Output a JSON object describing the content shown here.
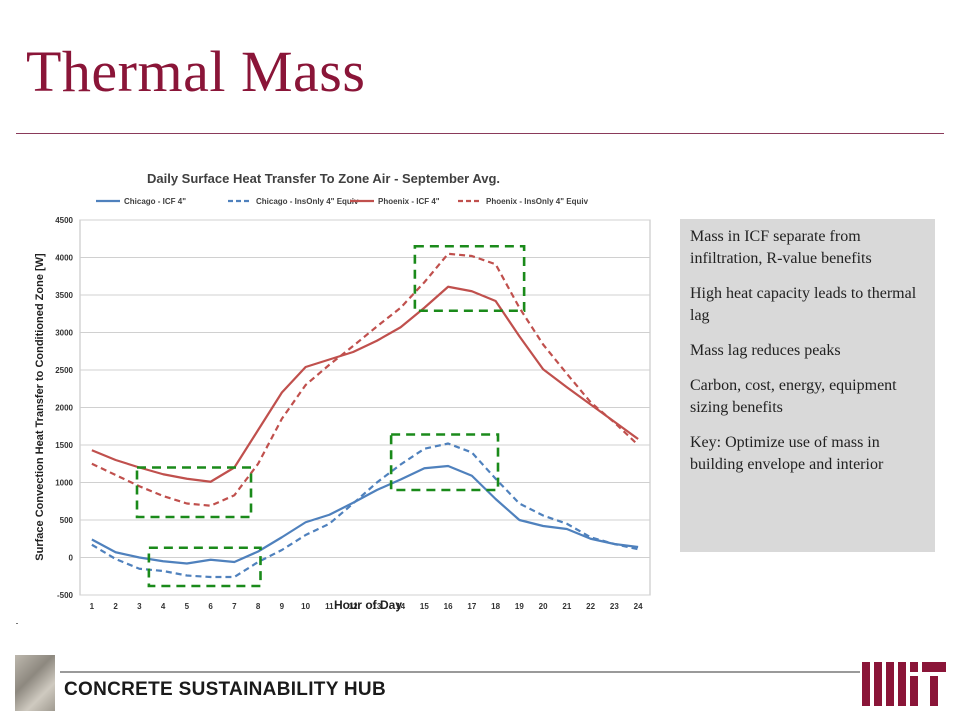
{
  "slide": {
    "title": "Thermal Mass",
    "footer_text": "CONCRETE SUSTAINABILITY HUB",
    "mit_logo": "mit-logo",
    "hub_logo": "concrete-hub-logo"
  },
  "callout": {
    "items": [
      "Mass in ICF separate from infiltration, R-value benefits",
      "High heat capacity leads to thermal lag",
      "Mass lag reduces peaks",
      "Carbon, cost, energy, equipment sizing benefits",
      "Key: Optimize use of mass in building envelope and interior"
    ]
  },
  "chart_data": {
    "type": "line",
    "title": "Daily Surface Heat Transfer To Zone Air - September Avg.",
    "xlabel": "Hour of Day",
    "ylabel": "Surface Convection Heat Transfer to Conditioned Zone [W]",
    "x": [
      1,
      2,
      3,
      4,
      5,
      6,
      7,
      8,
      9,
      10,
      11,
      12,
      13,
      14,
      15,
      16,
      17,
      18,
      19,
      20,
      21,
      22,
      23,
      24
    ],
    "ylim": [
      -500,
      4500
    ],
    "yticks": [
      -500,
      0,
      500,
      1000,
      1500,
      2000,
      2500,
      3000,
      3500,
      4000,
      4500
    ],
    "grid": true,
    "legend_position": "top",
    "series": [
      {
        "name": "Chicago - ICF 4\"",
        "color": "#4f81bd",
        "dash": false,
        "values": [
          240,
          70,
          0,
          -50,
          -80,
          -30,
          -60,
          80,
          270,
          470,
          570,
          730,
          900,
          1040,
          1190,
          1220,
          1090,
          780,
          500,
          420,
          380,
          250,
          180,
          140
        ]
      },
      {
        "name": "Chicago - InsOnly 4\" Equiv",
        "color": "#4f81bd",
        "dash": true,
        "values": [
          170,
          -20,
          -150,
          -180,
          -240,
          -260,
          -260,
          -60,
          100,
          300,
          450,
          720,
          1000,
          1240,
          1450,
          1520,
          1400,
          1050,
          720,
          560,
          450,
          270,
          180,
          110
        ]
      },
      {
        "name": "Phoenix - ICF 4\"",
        "color": "#c0504d",
        "dash": false,
        "values": [
          1430,
          1300,
          1200,
          1110,
          1050,
          1010,
          1200,
          1700,
          2200,
          2540,
          2640,
          2740,
          2890,
          3070,
          3330,
          3610,
          3550,
          3420,
          2950,
          2510,
          2270,
          2040,
          1810,
          1580
        ]
      },
      {
        "name": "Phoenix - InsOnly 4\" Equiv",
        "color": "#c0504d",
        "dash": true,
        "values": [
          1250,
          1100,
          950,
          820,
          720,
          690,
          830,
          1250,
          1850,
          2300,
          2570,
          2820,
          3080,
          3330,
          3670,
          4050,
          4020,
          3910,
          3330,
          2840,
          2450,
          2070,
          1800,
          1500
        ]
      }
    ],
    "highlight_boxes": [
      {
        "x": [
          2.9,
          7.7
        ],
        "y": [
          540,
          1200
        ]
      },
      {
        "x": [
          3.4,
          8.1
        ],
        "y": [
          -380,
          130
        ]
      },
      {
        "x": [
          13.6,
          18.1
        ],
        "y": [
          900,
          1640
        ]
      },
      {
        "x": [
          14.6,
          19.2
        ],
        "y": [
          3290,
          4150
        ]
      }
    ]
  }
}
